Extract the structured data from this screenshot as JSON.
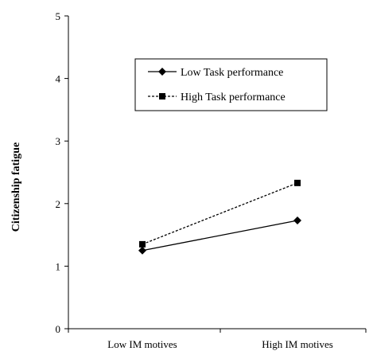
{
  "chart_data": {
    "type": "line",
    "title": "",
    "xlabel": "",
    "ylabel": "Citizenship fatigue",
    "categories": [
      "Low IM motives",
      "High IM motives"
    ],
    "ylim": [
      0,
      5
    ],
    "yticks": [
      "0",
      "1",
      "2",
      "3",
      "4",
      "5"
    ],
    "grid": false,
    "legend_position": "top-right",
    "series": [
      {
        "name": "Low Task performance",
        "values": [
          1.25,
          1.73
        ],
        "marker": "diamond",
        "line_style": "solid",
        "color": "#000000"
      },
      {
        "name": "High Task performance",
        "values": [
          1.35,
          2.33
        ],
        "marker": "square",
        "line_style": "dashed",
        "color": "#000000"
      }
    ]
  }
}
